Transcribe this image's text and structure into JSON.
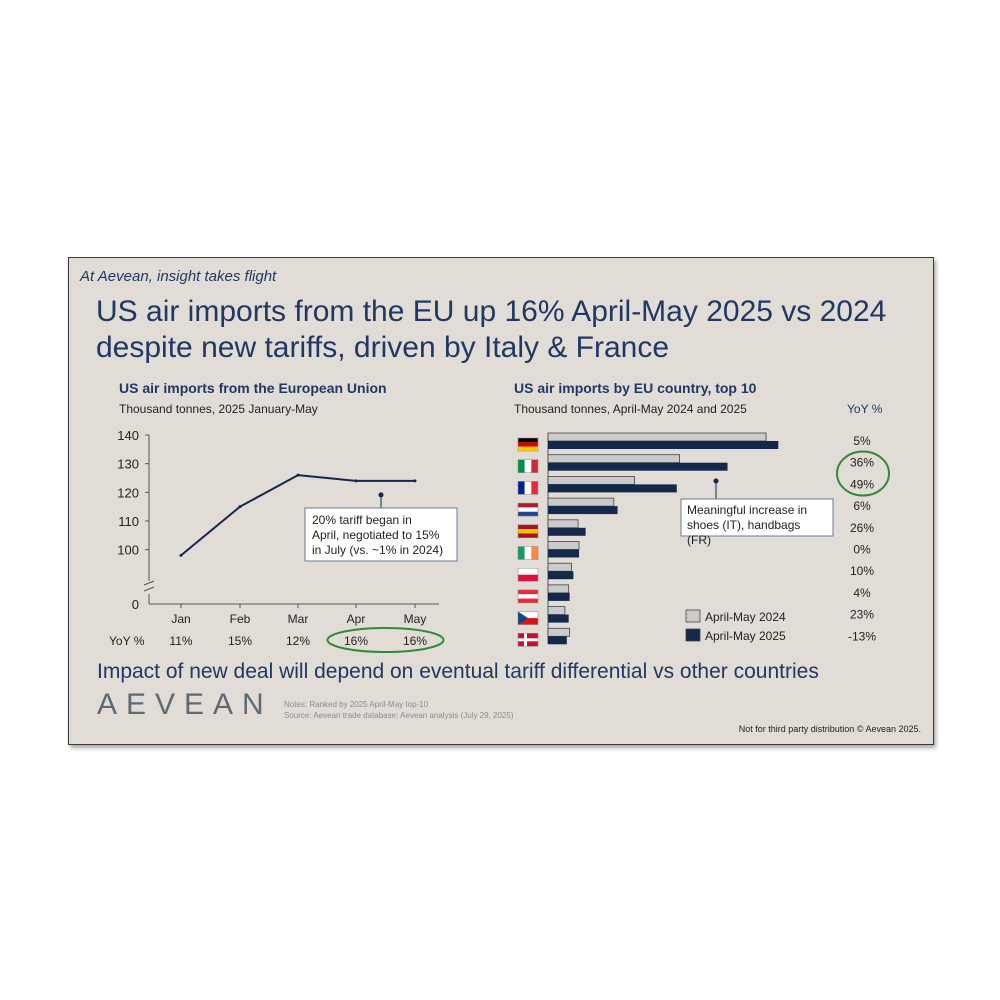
{
  "slide": {
    "tagline": "At Aevean, insight takes flight",
    "headline": "US air imports from the EU up 16% April-May 2025 vs 2024 despite new tariffs, driven by Italy & France",
    "bottom_line": "Impact of new deal will depend on eventual tariff differential vs other countries",
    "logo_text": "AEVEAN",
    "notes": [
      "Notes: Ranked by 2025 April-May top-10",
      "Source: Aevean trade database; Aevean analysis (July 29, 2025)"
    ],
    "footer": "Not for third party distribution © Aevean 2025.",
    "colors": {
      "navy": "#14284b",
      "gray_bar": "#cbcbcb",
      "highlight_green": "#2e8b3a",
      "background": "#e2dcd7"
    }
  },
  "chart_data": [
    {
      "type": "line",
      "title": "US air imports from the European Union",
      "subtitle": "Thousand tonnes, 2025 January-May",
      "categories": [
        "Jan",
        "Feb",
        "Mar",
        "Apr",
        "May"
      ],
      "values": [
        98,
        115,
        126,
        124,
        124
      ],
      "y_ticks": [
        "140",
        "130",
        "120",
        "110",
        "100",
        "0"
      ],
      "y_axis_break": true,
      "ylim": [
        95,
        140
      ],
      "yoy_label": "YoY %",
      "yoy": [
        "11%",
        "15%",
        "12%",
        "16%",
        "16%"
      ],
      "highlighted_yoy": [
        "Apr",
        "May"
      ],
      "annotation": "20% tariff began in April, negotiated to 15% in July (vs. ~1% in 2024)"
    },
    {
      "type": "bar",
      "orientation": "horizontal",
      "title": "US air imports by EU country, top 10",
      "subtitle": "Thousand tonnes, April-May 2024 and 2025",
      "yoy_header": "YoY %",
      "categories": [
        "Germany",
        "Italy",
        "France",
        "Netherlands",
        "Spain",
        "Ireland",
        "Poland",
        "Austria",
        "Czechia",
        "Denmark"
      ],
      "category_flag_icons": [
        "flag-germany-icon",
        "flag-italy-icon",
        "flag-france-icon",
        "flag-netherlands-icon",
        "flag-spain-icon",
        "flag-ireland-icon",
        "flag-poland-icon",
        "flag-austria-icon",
        "flag-czechia-icon",
        "flag-denmark-icon"
      ],
      "series": [
        {
          "name": "April-May 2024",
          "color": "#cbcbcb",
          "values": [
            232,
            140,
            92,
            70,
            32,
            33,
            25,
            22,
            18,
            23
          ]
        },
        {
          "name": "April-May 2025",
          "color": "#14284b",
          "values": [
            245,
            191,
            137,
            74,
            40,
            33,
            27,
            23,
            22,
            20
          ]
        }
      ],
      "yoy": [
        "5%",
        "36%",
        "49%",
        "6%",
        "26%",
        "0%",
        "10%",
        "4%",
        "23%",
        "-13%"
      ],
      "highlighted_yoy": [
        "Italy",
        "France"
      ],
      "annotation": "Meaningful increase in shoes (IT), handbags (FR)"
    }
  ]
}
